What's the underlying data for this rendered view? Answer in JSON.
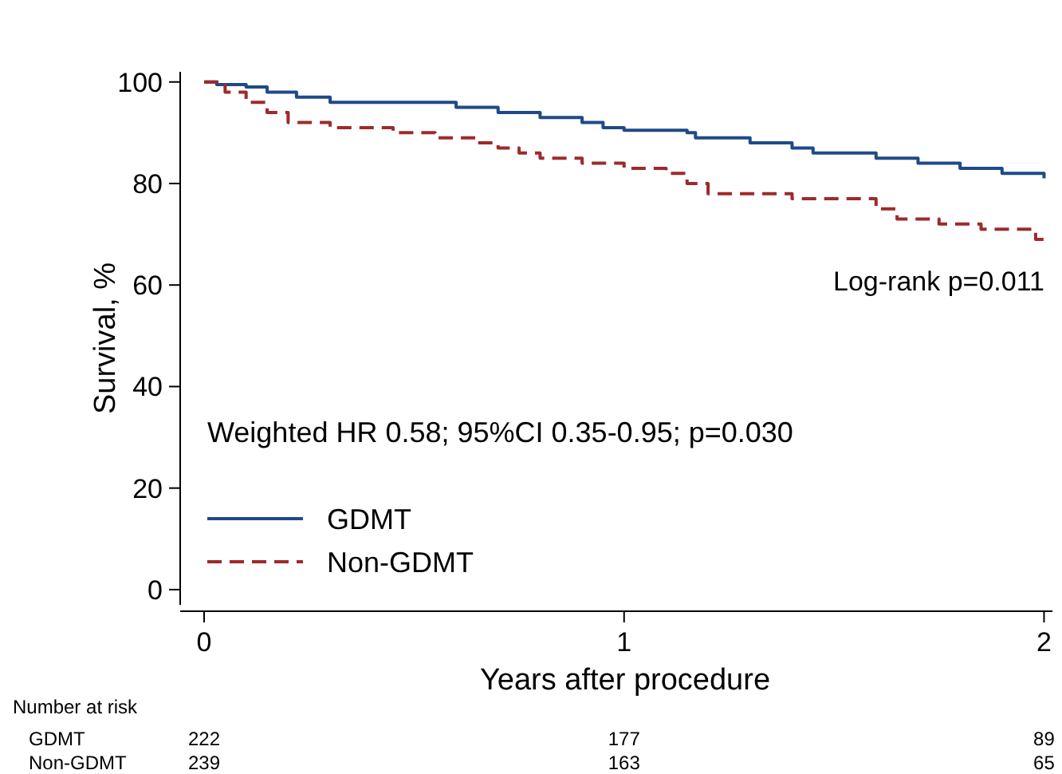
{
  "chart_data": {
    "type": "step",
    "xlabel": "Years after procedure",
    "ylabel": "Survival, %",
    "xlim": [
      -0.057,
      2.02
    ],
    "ylim": [
      -3,
      102
    ],
    "xticks": [
      0,
      1,
      2
    ],
    "yticks": [
      0,
      20,
      40,
      60,
      80,
      100
    ],
    "grid": false,
    "legend": "bottom left",
    "series": [
      {
        "name": "GDMT",
        "color": "#1f4a87",
        "line_style": "solid",
        "x": [
          0,
          0.03,
          0.1,
          0.15,
          0.22,
          0.3,
          0.6,
          0.7,
          0.8,
          0.9,
          0.95,
          1.0,
          1.15,
          1.17,
          1.3,
          1.4,
          1.45,
          1.6,
          1.7,
          1.8,
          1.9,
          2.0
        ],
        "values": [
          100,
          99.5,
          99,
          98,
          97,
          96,
          95,
          94,
          93,
          92,
          91,
          90.5,
          90,
          89,
          88,
          87,
          86,
          85,
          84,
          83,
          82,
          81
        ]
      },
      {
        "name": "Non-GDMT",
        "color": "#9e2a2b",
        "line_style": "dashed",
        "x": [
          0,
          0.05,
          0.1,
          0.15,
          0.2,
          0.3,
          0.45,
          0.55,
          0.65,
          0.7,
          0.75,
          0.8,
          0.9,
          1.0,
          1.1,
          1.15,
          1.2,
          1.4,
          1.6,
          1.65,
          1.75,
          1.85,
          1.98,
          2.0
        ],
        "values": [
          100,
          98,
          96,
          94,
          92,
          91,
          90,
          89,
          88,
          87,
          86,
          85,
          84,
          83,
          82,
          80,
          78,
          77,
          75,
          73,
          72,
          71,
          69,
          69
        ]
      }
    ],
    "annotations": [
      "Log-rank p=0.011",
      "Weighted HR 0.58; 95%CI 0.35-0.95; p=0.030",
      "Number at risk",
      "GDMT",
      "Non-GDMT",
      "222",
      "177",
      "89",
      "239",
      "163",
      "65"
    ]
  }
}
